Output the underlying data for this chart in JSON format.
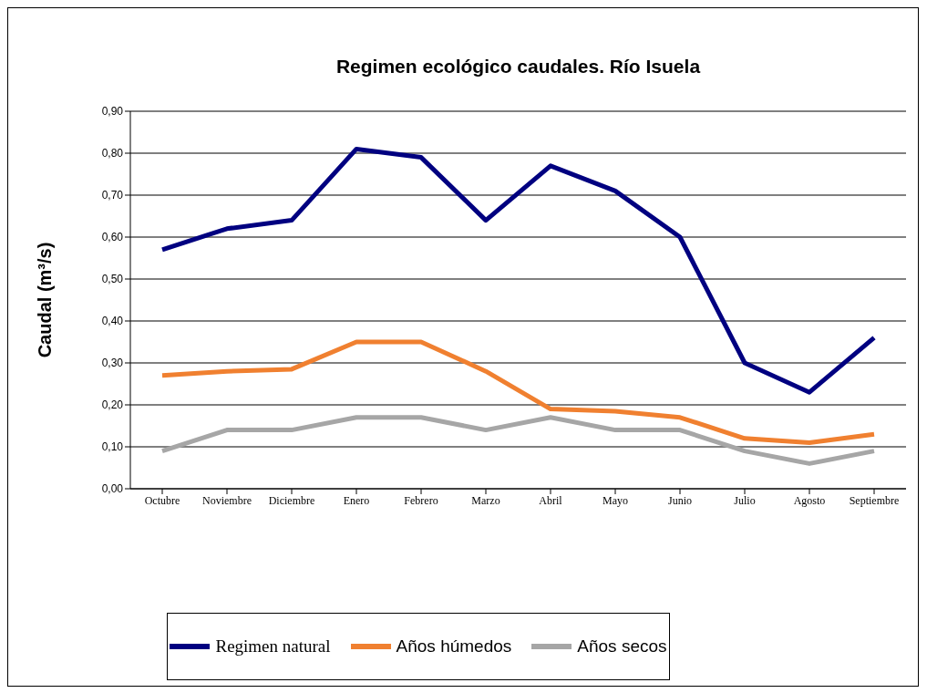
{
  "chart_data": {
    "type": "line",
    "title": "Regimen ecológico caudales. Río Isuela",
    "ylabel": "Caudal (m³/s)",
    "categories": [
      "Octubre",
      "Noviembre",
      "Diciembre",
      "Enero",
      "Febrero",
      "Marzo",
      "Abril",
      "Mayo",
      "Junio",
      "Julio",
      "Agosto",
      "Septiembre"
    ],
    "series": [
      {
        "name": "Regimen natural",
        "color": "#000080",
        "values": [
          0.57,
          0.62,
          0.64,
          0.81,
          0.79,
          0.64,
          0.77,
          0.71,
          0.6,
          0.3,
          0.23,
          0.36
        ]
      },
      {
        "name": "Años húmedos",
        "color": "#f08030",
        "values": [
          0.27,
          0.28,
          0.285,
          0.35,
          0.35,
          0.28,
          0.19,
          0.185,
          0.17,
          0.12,
          0.11,
          0.13
        ]
      },
      {
        "name": "Años secos",
        "color": "#a6a6a6",
        "values": [
          0.09,
          0.14,
          0.14,
          0.17,
          0.17,
          0.14,
          0.17,
          0.14,
          0.14,
          0.09,
          0.06,
          0.09
        ]
      }
    ],
    "ylim": [
      0,
      0.9
    ],
    "yticks": [
      {
        "value": 0,
        "label": "0,00"
      },
      {
        "value": 0.1,
        "label": "0,10"
      },
      {
        "value": 0.2,
        "label": "0,20"
      },
      {
        "value": 0.3,
        "label": "0,30"
      },
      {
        "value": 0.4,
        "label": "0,40"
      },
      {
        "value": 0.5,
        "label": "0,50"
      },
      {
        "value": 0.6,
        "label": "0,60"
      },
      {
        "value": 0.7,
        "label": "0,70"
      },
      {
        "value": 0.8,
        "label": "0,80"
      },
      {
        "value": 0.9,
        "label": "0,90"
      }
    ],
    "grid": "y",
    "legend": "bottom",
    "marker": "none",
    "line_style": "solid"
  }
}
